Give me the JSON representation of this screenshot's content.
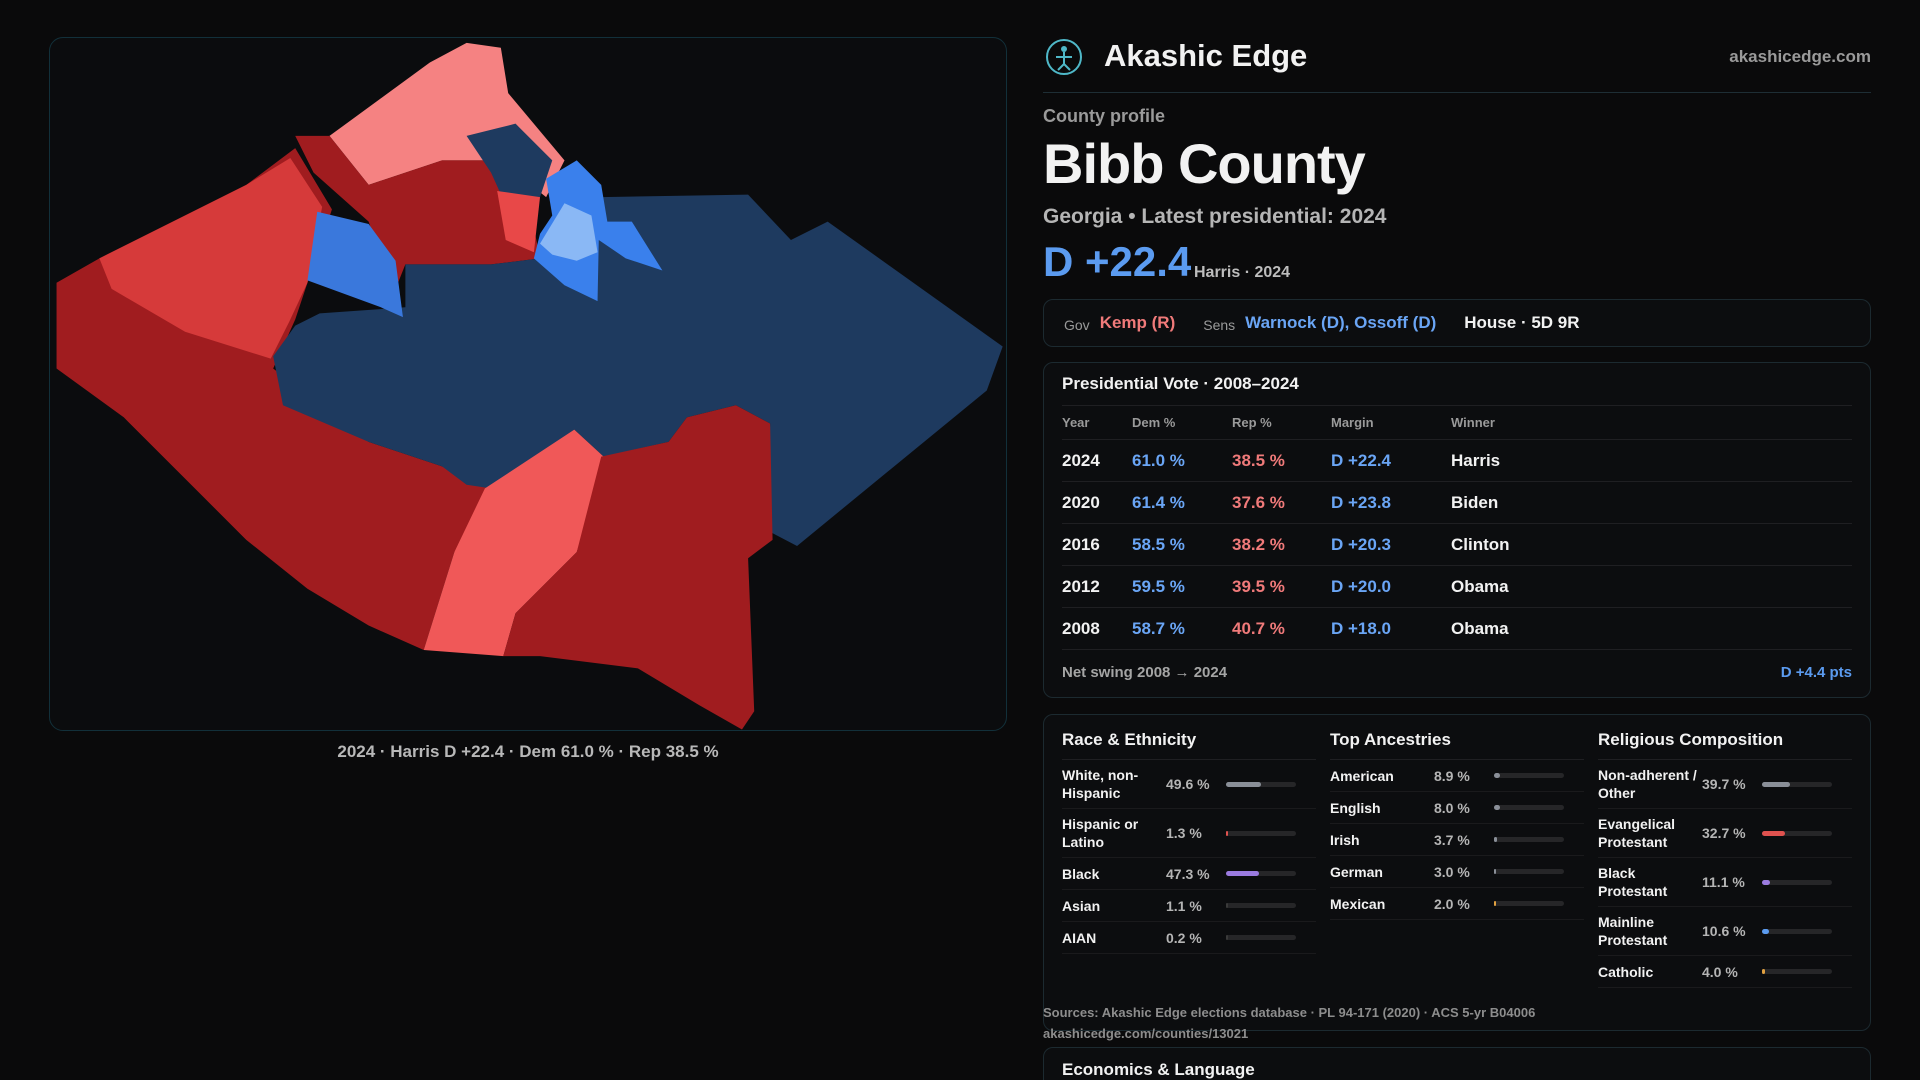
{
  "header": {
    "brand": "Akashic Edge",
    "domain": "akashicedge.com"
  },
  "map": {
    "caption": "2024 · Harris D +22.4 · Dem 61.0 % · Rep 38.5 %"
  },
  "profile": {
    "eyebrow": "County profile",
    "title": "Bibb County",
    "subtitle": "Georgia • Latest presidential: 2024",
    "margin": "D +22.4",
    "margin_note": "Harris · 2024"
  },
  "officials": {
    "gov_label": "Gov",
    "gov": "Kemp (R)",
    "sens_label": "Sens",
    "sens": "Warnock (D), Ossoff (D)",
    "house": "House · 5D 9R"
  },
  "presidential": {
    "title": "Presidential Vote · 2008–2024",
    "columns": [
      "Year",
      "Dem %",
      "Rep %",
      "Margin",
      "Winner"
    ],
    "rows": [
      [
        "2024",
        "61.0 %",
        "38.5 %",
        "D +22.4",
        "Harris"
      ],
      [
        "2020",
        "61.4 %",
        "37.6 %",
        "D +23.8",
        "Biden"
      ],
      [
        "2016",
        "58.5 %",
        "38.2 %",
        "D +20.3",
        "Clinton"
      ],
      [
        "2012",
        "59.5 %",
        "39.5 %",
        "D +20.0",
        "Obama"
      ],
      [
        "2008",
        "58.7 %",
        "40.7 %",
        "D +18.0",
        "Obama"
      ]
    ],
    "swing_label": "Net swing 2008 → 2024",
    "swing_value": "D +4.4 pts"
  },
  "demographics": [
    {
      "title": "Race & Ethnicity",
      "rows": [
        {
          "label": "White, non-Hispanic",
          "value": 49.6,
          "value_label": "49.6 %",
          "color": "#8a8f98"
        },
        {
          "label": "Hispanic or Latino",
          "value": 1.3,
          "value_label": "1.3 %",
          "color": "#e0524f"
        },
        {
          "label": "Black",
          "value": 47.3,
          "value_label": "47.3 %",
          "color": "#9b7be0"
        },
        {
          "label": "Asian",
          "value": 1.1,
          "value_label": "1.1 %",
          "color": "#3a3a3a"
        },
        {
          "label": "AIAN",
          "value": 0.2,
          "value_label": "0.2 %",
          "color": "#3a3a3a"
        }
      ]
    },
    {
      "title": "Top Ancestries",
      "rows": [
        {
          "label": "American",
          "value": 8.9,
          "value_label": "8.9 %",
          "color": "#8a8f98"
        },
        {
          "label": "English",
          "value": 8.0,
          "value_label": "8.0 %",
          "color": "#8a8f98"
        },
        {
          "label": "Irish",
          "value": 3.7,
          "value_label": "3.7 %",
          "color": "#8a8f98"
        },
        {
          "label": "German",
          "value": 3.0,
          "value_label": "3.0 %",
          "color": "#8a8f98"
        },
        {
          "label": "Mexican",
          "value": 2.0,
          "value_label": "2.0 %",
          "color": "#e0a040"
        }
      ]
    },
    {
      "title": "Religious Composition",
      "rows": [
        {
          "label": "Non-adherent / Other",
          "value": 39.7,
          "value_label": "39.7 %",
          "color": "#8a8f98"
        },
        {
          "label": "Evangelical Protestant",
          "value": 32.7,
          "value_label": "32.7 %",
          "color": "#e0524f"
        },
        {
          "label": "Black Protestant",
          "value": 11.1,
          "value_label": "11.1 %",
          "color": "#9b7be0"
        },
        {
          "label": "Mainline Protestant",
          "value": 10.6,
          "value_label": "10.6 %",
          "color": "#5b9bf0"
        },
        {
          "label": "Catholic",
          "value": 4.0,
          "value_label": "4.0 %",
          "color": "#e0a040"
        }
      ]
    }
  ],
  "sources": [
    "Sources: Akashic Edge elections database · PL 94-171 (2020) · ACS 5-yr B04006",
    "akashicedge.com/counties/13021"
  ],
  "economics": {
    "title": "Economics & Language"
  }
}
